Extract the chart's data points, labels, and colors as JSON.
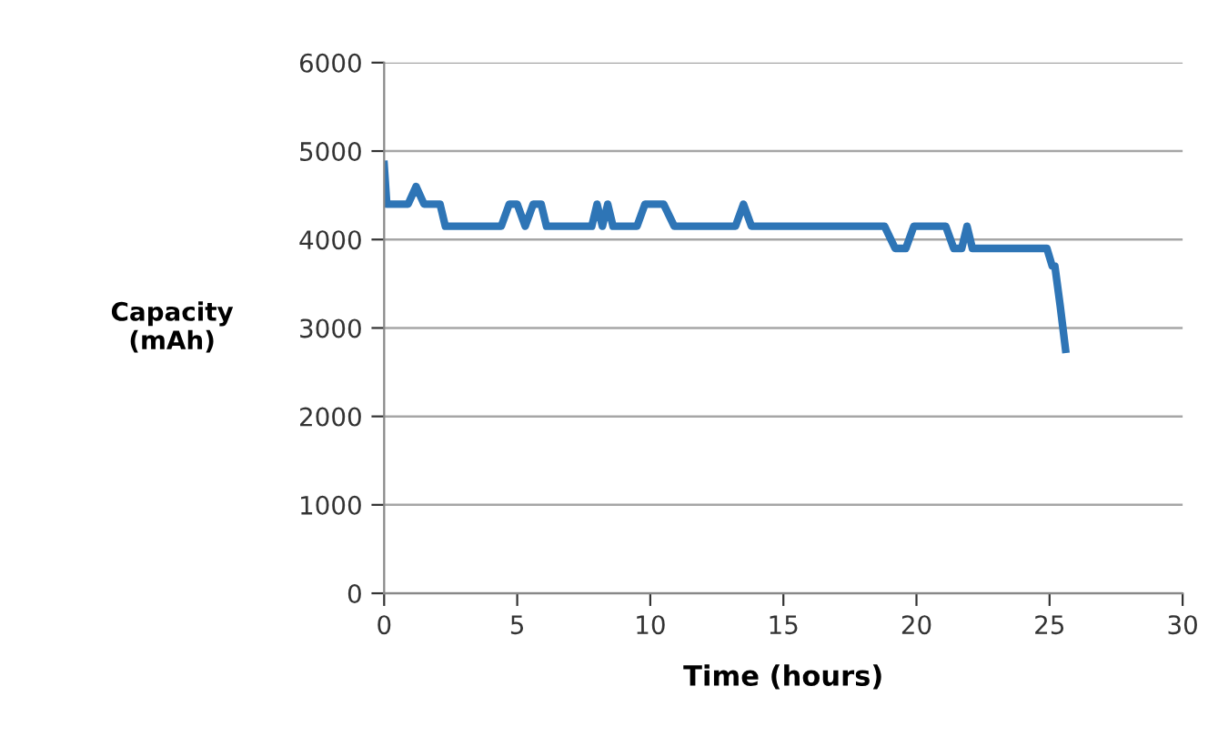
{
  "chart_data": {
    "type": "line",
    "xlabel": "Time (hours)",
    "ylabel": "Capacity\n(mAh)",
    "series": [
      {
        "color": "#2e75b6",
        "x": [
          0,
          0.1,
          0.9,
          1.2,
          1.5,
          1.8,
          2.1,
          2.3,
          4.4,
          4.7,
          5.0,
          5.3,
          5.6,
          5.9,
          6.1,
          7.8,
          8.0,
          8.2,
          8.4,
          8.6,
          8.8,
          9.5,
          9.8,
          10.5,
          10.9,
          11.2,
          13.2,
          13.5,
          13.8,
          18.6,
          18.8,
          19.2,
          19.6,
          19.9,
          20.8,
          21.1,
          21.4,
          21.7,
          21.9,
          22.1,
          24.7,
          24.9,
          25.1,
          25.2,
          25.4,
          25.6
        ],
        "values": [
          4850,
          4400,
          4400,
          4600,
          4400,
          4400,
          4400,
          4150,
          4150,
          4400,
          4400,
          4150,
          4400,
          4400,
          4150,
          4150,
          4400,
          4150,
          4400,
          4150,
          4150,
          4150,
          4400,
          4400,
          4150,
          4150,
          4150,
          4400,
          4150,
          4150,
          4150,
          3900,
          3900,
          4150,
          4150,
          4150,
          3900,
          3900,
          4150,
          3900,
          3900,
          3900,
          3700,
          3700,
          3250,
          2760
        ]
      }
    ],
    "xlim": [
      0,
      30
    ],
    "xticks": [
      0,
      5,
      10,
      15,
      20,
      25,
      30
    ],
    "ylim": [
      0,
      6000
    ],
    "yticks": [
      0,
      1000,
      2000,
      3000,
      4000,
      5000,
      6000
    ],
    "grid": "y",
    "legend": false,
    "marker": "none",
    "line_style": "solid"
  }
}
